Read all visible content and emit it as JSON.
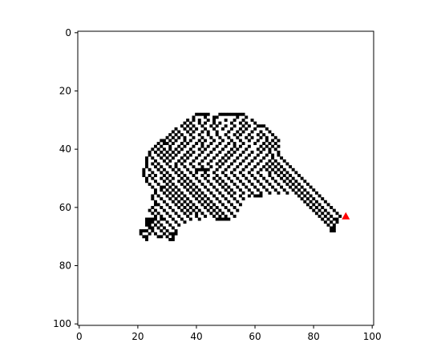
{
  "chart_data": {
    "type": "heatmap",
    "title": "",
    "xlabel": "",
    "ylabel": "",
    "xlim": [
      0,
      100
    ],
    "ylim": [
      100,
      0
    ],
    "grid": false,
    "x_ticks": [
      0,
      20,
      40,
      60,
      80,
      100
    ],
    "y_ticks": [
      0,
      20,
      40,
      60,
      80,
      100
    ],
    "x_tick_labels": [
      "0",
      "20",
      "40",
      "60",
      "80",
      "100"
    ],
    "y_tick_labels": [
      "0",
      "20",
      "40",
      "60",
      "80",
      "100"
    ],
    "cell_color": "#000000",
    "background_color": "#ffffff",
    "marker": {
      "type": "triangle",
      "x": 91,
      "y": 63,
      "color": "#ff0000"
    },
    "rows": [
      {
        "y": 28,
        "x": [
          40,
          41,
          42,
          43,
          44,
          48,
          49,
          50,
          51,
          52,
          53,
          54,
          55,
          56
        ]
      },
      {
        "y": 29,
        "x": [
          39,
          43,
          46,
          47,
          54,
          57
        ]
      },
      {
        "y": 30,
        "x": [
          37,
          39,
          41,
          44,
          46,
          50,
          53,
          56,
          59
        ]
      },
      {
        "y": 31,
        "x": [
          36,
          38,
          41,
          43,
          46,
          48,
          52,
          55,
          57,
          60
        ]
      },
      {
        "y": 32,
        "x": [
          35,
          37,
          39,
          42,
          45,
          47,
          50,
          53,
          56,
          58,
          61,
          62,
          63
        ]
      },
      {
        "y": 33,
        "x": [
          33,
          36,
          38,
          40,
          43,
          46,
          49,
          52,
          55,
          57,
          60,
          64
        ]
      },
      {
        "y": 34,
        "x": [
          32,
          34,
          37,
          39,
          42,
          44,
          47,
          51,
          54,
          56,
          59,
          62,
          65
        ]
      },
      {
        "y": 35,
        "x": [
          31,
          33,
          35,
          38,
          41,
          44,
          47,
          50,
          53,
          55,
          58,
          61,
          63,
          66
        ]
      },
      {
        "y": 36,
        "x": [
          30,
          32,
          34,
          36,
          39,
          42,
          45,
          48,
          51,
          54,
          57,
          59,
          62,
          64,
          67
        ]
      },
      {
        "y": 37,
        "x": [
          28,
          29,
          31,
          33,
          36,
          38,
          41,
          43,
          46,
          49,
          52,
          55,
          58,
          61,
          64,
          66,
          68
        ]
      },
      {
        "y": 38,
        "x": [
          27,
          29,
          30,
          32,
          35,
          37,
          40,
          42,
          45,
          48,
          51,
          53,
          56,
          60,
          63,
          65,
          67
        ]
      },
      {
        "y": 39,
        "x": [
          26,
          28,
          31,
          34,
          36,
          39,
          42,
          44,
          47,
          50,
          53,
          55,
          58,
          62,
          64,
          66,
          68
        ]
      },
      {
        "y": 40,
        "x": [
          25,
          27,
          29,
          31,
          33,
          35,
          38,
          41,
          43,
          46,
          49,
          52,
          54,
          57,
          61,
          63,
          65,
          67
        ]
      },
      {
        "y": 41,
        "x": [
          24,
          26,
          28,
          30,
          32,
          34,
          37,
          39,
          42,
          45,
          48,
          51,
          53,
          56,
          59,
          62,
          65,
          68
        ]
      },
      {
        "y": 42,
        "x": [
          24,
          27,
          29,
          31,
          33,
          36,
          38,
          41,
          44,
          47,
          50,
          52,
          55,
          58,
          61,
          64,
          66,
          68
        ]
      },
      {
        "y": 43,
        "x": [
          23,
          25,
          28,
          30,
          32,
          35,
          37,
          40,
          43,
          46,
          49,
          51,
          54,
          57,
          60,
          63,
          66,
          69
        ]
      },
      {
        "y": 44,
        "x": [
          23,
          26,
          29,
          31,
          34,
          36,
          39,
          42,
          45,
          48,
          50,
          53,
          56,
          59,
          62,
          65,
          67,
          70
        ]
      },
      {
        "y": 45,
        "x": [
          23,
          25,
          27,
          30,
          33,
          35,
          38,
          41,
          44,
          47,
          49,
          52,
          55,
          58,
          61,
          64,
          66,
          68,
          71
        ]
      },
      {
        "y": 46,
        "x": [
          23,
          26,
          28,
          31,
          33,
          36,
          39,
          42,
          45,
          48,
          51,
          54,
          57,
          60,
          63,
          65,
          67,
          69,
          72
        ]
      },
      {
        "y": 47,
        "x": [
          22,
          24,
          27,
          29,
          32,
          34,
          37,
          40,
          41,
          42,
          43,
          44,
          47,
          50,
          53,
          56,
          59,
          62,
          64,
          66,
          68,
          70,
          73
        ]
      },
      {
        "y": 48,
        "x": [
          22,
          25,
          28,
          30,
          33,
          35,
          38,
          40,
          43,
          46,
          49,
          52,
          55,
          58,
          61,
          65,
          67,
          69,
          71,
          74
        ]
      },
      {
        "y": 49,
        "x": [
          22,
          24,
          26,
          29,
          31,
          34,
          36,
          39,
          42,
          44,
          47,
          50,
          53,
          56,
          59,
          62,
          65,
          68,
          70,
          72,
          75
        ]
      },
      {
        "y": 50,
        "x": [
          23,
          25,
          28,
          30,
          32,
          35,
          37,
          40,
          43,
          46,
          48,
          51,
          54,
          57,
          60,
          63,
          66,
          69,
          71,
          73,
          76
        ]
      },
      {
        "y": 51,
        "x": [
          23,
          26,
          29,
          31,
          34,
          36,
          38,
          41,
          44,
          47,
          49,
          52,
          55,
          58,
          61,
          64,
          67,
          70,
          72,
          74,
          77
        ]
      },
      {
        "y": 52,
        "x": [
          24,
          27,
          30,
          32,
          35,
          37,
          39,
          42,
          45,
          48,
          50,
          53,
          56,
          59,
          62,
          65,
          68,
          71,
          73,
          75,
          78
        ]
      },
      {
        "y": 53,
        "x": [
          25,
          28,
          29,
          31,
          33,
          36,
          38,
          40,
          43,
          46,
          49,
          51,
          54,
          57,
          60,
          63,
          66,
          69,
          72,
          74,
          76,
          79
        ]
      },
      {
        "y": 54,
        "x": [
          26,
          28,
          30,
          32,
          34,
          37,
          39,
          41,
          44,
          47,
          50,
          52,
          55,
          58,
          61,
          64,
          67,
          70,
          73,
          75,
          77,
          80
        ]
      },
      {
        "y": 55,
        "x": [
          26,
          29,
          31,
          33,
          35,
          38,
          40,
          42,
          45,
          48,
          51,
          53,
          56,
          59,
          62,
          65,
          68,
          71,
          74,
          76,
          78,
          81
        ]
      },
      {
        "y": 56,
        "x": [
          25,
          27,
          30,
          32,
          34,
          36,
          39,
          41,
          43,
          46,
          49,
          52,
          55,
          58,
          60,
          61,
          62,
          75,
          77,
          79,
          82
        ]
      },
      {
        "y": 57,
        "x": [
          25,
          28,
          31,
          33,
          35,
          37,
          40,
          42,
          44,
          47,
          50,
          53,
          56,
          76,
          78,
          80,
          83
        ]
      },
      {
        "y": 58,
        "x": [
          26,
          29,
          32,
          34,
          36,
          38,
          41,
          43,
          45,
          48,
          51,
          54,
          77,
          79,
          81,
          84
        ]
      },
      {
        "y": 59,
        "x": [
          26,
          27,
          30,
          33,
          35,
          37,
          39,
          42,
          44,
          46,
          49,
          52,
          55,
          78,
          80,
          82,
          85
        ]
      },
      {
        "y": 60,
        "x": [
          25,
          28,
          31,
          34,
          36,
          38,
          40,
          43,
          45,
          47,
          50,
          53,
          79,
          81,
          83,
          86
        ]
      },
      {
        "y": 61,
        "x": [
          24,
          26,
          29,
          32,
          35,
          37,
          39,
          41,
          44,
          46,
          48,
          51,
          54,
          80,
          82,
          84,
          87
        ]
      },
      {
        "y": 62,
        "x": [
          25,
          27,
          30,
          33,
          36,
          38,
          40,
          42,
          45,
          47,
          49,
          52,
          81,
          83,
          85,
          88
        ]
      },
      {
        "y": 63,
        "x": [
          26,
          28,
          31,
          34,
          37,
          40,
          43,
          46,
          48,
          50,
          53,
          82,
          84,
          86,
          89
        ]
      },
      {
        "y": 64,
        "x": [
          23,
          24,
          25,
          26,
          28,
          29,
          32,
          35,
          38,
          41,
          47,
          48,
          49,
          50,
          51,
          83,
          85,
          87,
          88
        ]
      },
      {
        "y": 65,
        "x": [
          23,
          24,
          25,
          27,
          30,
          33,
          36,
          84,
          86,
          88
        ]
      },
      {
        "y": 66,
        "x": [
          23,
          24,
          26,
          28,
          31,
          34,
          85,
          87
        ]
      },
      {
        "y": 67,
        "x": [
          24,
          25,
          27,
          29,
          32,
          86,
          87
        ]
      },
      {
        "y": 68,
        "x": [
          21,
          22,
          23,
          25,
          28,
          30,
          33,
          86,
          87
        ]
      },
      {
        "y": 69,
        "x": [
          21,
          24,
          26,
          29,
          31,
          32,
          33
        ]
      },
      {
        "y": 70,
        "x": [
          22,
          23,
          27,
          28,
          30,
          32
        ]
      },
      {
        "y": 71,
        "x": [
          23,
          31,
          32
        ]
      }
    ]
  }
}
